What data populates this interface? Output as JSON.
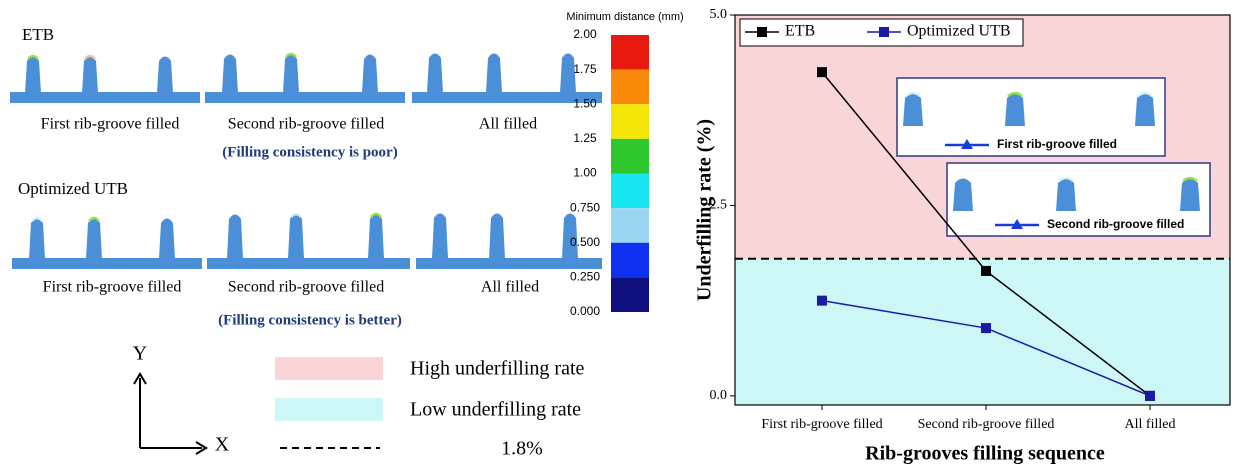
{
  "figure": {
    "rows": [
      {
        "label": "ETB",
        "captions": [
          "First rib-groove filled",
          "Second rib-groove filled",
          "All filled"
        ],
        "note": "(Filling consistency is poor)"
      },
      {
        "label": "Optimized UTB",
        "captions": [
          "First rib-groove filled",
          "Second rib-groove filled",
          "All filled"
        ],
        "note": "(Filling consistency is better)"
      }
    ],
    "colorbar": {
      "title": "Minimum distance (mm)",
      "labels": [
        "2.00",
        "1.75",
        "1.50",
        "1.25",
        "1.00",
        "0.750",
        "0.500",
        "0.250",
        "0.000"
      ],
      "colors": [
        "#e8190f",
        "#f98a0a",
        "#f5e60a",
        "#2ec72e",
        "#19e6f0",
        "#9ad6f2",
        "#1030f0",
        "#101080"
      ]
    },
    "legend": {
      "axes": [
        "Y",
        "X"
      ],
      "items": [
        "High underfilling rate",
        "Low underfilling rate"
      ]
    },
    "insets": [
      "First rib-groove filled",
      "Second rib-groove filled"
    ]
  },
  "chart_data": {
    "type": "line",
    "xlabel": "Rib-grooves filling sequence",
    "ylabel": "Underfilling rate (%)",
    "categories": [
      "First rib-groove filled",
      "Second rib-groove filled",
      "All filled"
    ],
    "series": [
      {
        "name": "ETB",
        "color": "#000000",
        "values": [
          4.25,
          1.64,
          0
        ]
      },
      {
        "name": "Optimized UTB",
        "color": "#1a1aa6",
        "values": [
          1.25,
          0.89,
          0
        ]
      }
    ],
    "ylim": [
      -0.12,
      5
    ],
    "yticks": [
      {
        "value": 0,
        "label": "0.0"
      },
      {
        "value": 2.5,
        "label": "2.5"
      },
      {
        "value": 5,
        "label": "5.0"
      }
    ],
    "threshold": {
      "value": 1.8,
      "label": "1.8%"
    },
    "regions": {
      "above": "#f9d5d8",
      "below": "#cdf6f6"
    }
  }
}
